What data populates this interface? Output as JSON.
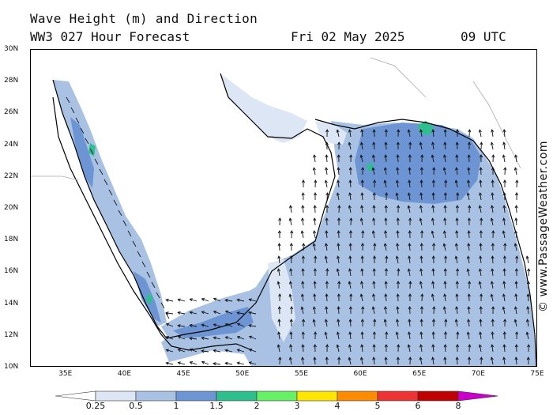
{
  "header": {
    "title": "Wave Height (m) and Direction",
    "model": "WW3 027 Hour Forecast",
    "date": "Fri 02 May 2025",
    "time": "09 UTC"
  },
  "credit": "© www.PassageWeather.com",
  "map": {
    "lat_range": [
      10,
      30
    ],
    "lon_range": [
      32,
      75
    ],
    "lat_labels": [
      "30N",
      "28N",
      "26N",
      "24N",
      "22N",
      "20N",
      "18N",
      "16N",
      "14N",
      "12N",
      "10N"
    ],
    "lon_labels": [
      "35E",
      "40E",
      "45E",
      "50E",
      "55E",
      "60E",
      "65E",
      "70E",
      "75E"
    ],
    "lat_values": [
      30,
      28,
      26,
      24,
      22,
      20,
      18,
      16,
      14,
      12,
      10
    ],
    "lon_values": [
      35,
      40,
      45,
      50,
      55,
      60,
      65,
      70,
      75
    ],
    "arrow_direction": "mostly north / north-north-west across Arabian Sea; south-east in Red Sea; west in Gulf of Aden"
  },
  "legend": {
    "labels": [
      "0.25",
      "0.5",
      "1",
      "1.5",
      "2",
      "3",
      "4",
      "5",
      "6",
      "8"
    ],
    "colors": [
      "#ffffff",
      "#dce6f4",
      "#a9c2e4",
      "#6e95d3",
      "#2fbf8f",
      "#66f066",
      "#ffe600",
      "#ff8c00",
      "#ee3333",
      "#c00000",
      "#cc00cc"
    ]
  }
}
